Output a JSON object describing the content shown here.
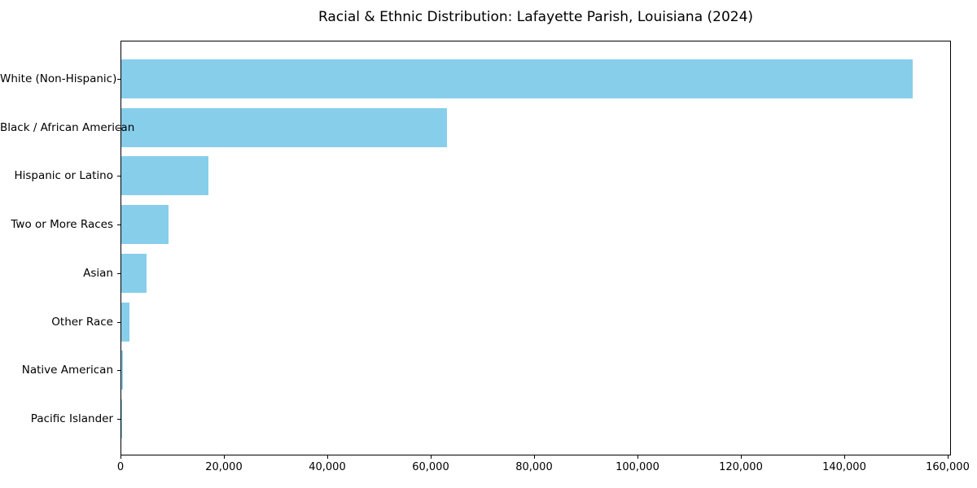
{
  "chart_data": {
    "type": "bar",
    "orientation": "horizontal",
    "title": "Racial & Ethnic Distribution: Lafayette Parish, Louisiana (2024)",
    "categories": [
      "White (Non-Hispanic)",
      "Black / African American",
      "Hispanic or Latino",
      "Two or More Races",
      "Asian",
      "Other Race",
      "Native American",
      "Pacific Islander"
    ],
    "values": [
      153000,
      63000,
      16800,
      9100,
      4900,
      1500,
      300,
      100
    ],
    "bar_color": "#87CEEB",
    "background_color": "#ffffff",
    "text_color": "#000000",
    "x_ticks": [
      0,
      20000,
      40000,
      60000,
      80000,
      100000,
      120000,
      140000,
      160000
    ],
    "x_tick_labels": [
      "0",
      "20,000",
      "40,000",
      "60,000",
      "80,000",
      "100,000",
      "120,000",
      "140,000",
      "160,000"
    ],
    "xlim": [
      0,
      160630
    ],
    "xlabel": "",
    "ylabel": "",
    "grid": false,
    "legend": "none"
  }
}
